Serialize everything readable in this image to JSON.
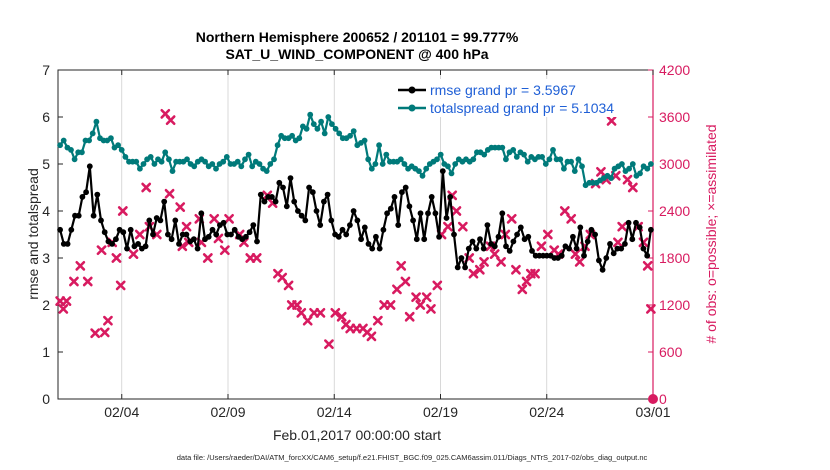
{
  "chart_data": {
    "type": "line",
    "title_line1": "Northern Hemisphere 200652 / 201101 = 99.777%",
    "title_line2": "SAT_U_WIND_COMPONENT @ 400 hPa",
    "xlabel": "Feb.01,2017 00:00:00 start",
    "ylabel_left": "rmse and totalspread",
    "ylabel_right": "# of obs: o=possible; ×=assimilated",
    "footer": "data file: /Users/raeder/DAI/ATM_forcXX/CAM6_setup/f.e21.FHIST_BGC.f09_025.CAM6assim.011/Diags_NTrS_2017-02/obs_diag_output.nc",
    "x_range_days": [
      0.5,
      28.5
    ],
    "x_ticks": [
      {
        "day": 3.5,
        "label": "02/04"
      },
      {
        "day": 8.5,
        "label": "02/09"
      },
      {
        "day": 13.5,
        "label": "02/14"
      },
      {
        "day": 18.5,
        "label": "02/19"
      },
      {
        "day": 23.5,
        "label": "02/24"
      },
      {
        "day": 28.5,
        "label": "03/01"
      }
    ],
    "ylim_left": [
      0,
      7
    ],
    "yticks_left": [
      "0",
      "1",
      "2",
      "3",
      "4",
      "5",
      "6",
      "7"
    ],
    "ylim_right": [
      0,
      4200
    ],
    "yticks_right": [
      "0",
      "600",
      "1200",
      "1800",
      "2400",
      "3000",
      "3600",
      "4200"
    ],
    "colors": {
      "rmse": "#000000",
      "totalspread": "#007a7a",
      "obs": "#d81b60",
      "legend_text": "#1f5fd6",
      "right_axis": "#d81b60"
    },
    "series": [
      {
        "name": "rmse grand pr = 3.5967",
        "color": "#000000",
        "values": [
          3.6,
          3.3,
          3.3,
          3.6,
          3.9,
          3.9,
          4.3,
          4.4,
          4.95,
          3.9,
          4.35,
          3.8,
          3.55,
          3.35,
          3.3,
          3.4,
          3.6,
          3.55,
          3.2,
          3.6,
          3.25,
          3.3,
          3.2,
          3.25,
          3.8,
          3.5,
          3.85,
          3.8,
          4.2,
          3.5,
          3.4,
          3.8,
          3.3,
          3.5,
          3.5,
          3.35,
          3.4,
          3.2,
          3.95,
          3.4,
          3.45,
          3.6,
          3.5,
          3.7,
          3.75,
          3.5,
          3.5,
          3.6,
          3.45,
          3.4,
          3.45,
          3.55,
          3.7,
          3.35,
          4.35,
          4.2,
          4.3,
          4.3,
          4.2,
          4.6,
          4.5,
          4.1,
          4.7,
          4.2,
          4.0,
          3.9,
          3.8,
          4.5,
          4.4,
          4.0,
          3.7,
          4.2,
          4.35,
          3.8,
          3.5,
          3.45,
          3.6,
          3.5,
          3.7,
          4.0,
          3.8,
          3.4,
          3.65,
          3.3,
          3.2,
          3.45,
          3.2,
          3.6,
          3.95,
          4.05,
          4.3,
          3.7,
          4.4,
          4.5,
          4.1,
          3.8,
          3.4,
          3.95,
          3.4,
          3.95,
          4.3,
          3.95,
          3.45,
          4.85,
          3.85,
          4.3,
          3.5,
          2.8,
          3.0,
          2.8,
          3.2,
          3.35,
          3.2,
          3.4,
          3.2,
          3.7,
          3.3,
          3.25,
          3.45,
          3.95,
          3.25,
          3.15,
          3.35,
          3.5,
          3.65,
          3.4,
          3.45,
          3.15,
          3.05,
          3.05,
          3.05,
          3.05,
          3.05,
          3.0,
          3.0,
          3.05,
          3.25,
          3.2,
          3.45,
          3.2,
          3.65,
          3.05,
          3.35,
          3.6,
          3.5,
          2.95,
          2.75,
          3.0,
          3.3,
          3.1,
          3.2,
          3.2,
          3.3,
          3.75,
          3.4,
          3.75,
          3.65,
          3.2,
          3.05,
          3.6
        ]
      },
      {
        "name": "totalspread grand pr = 5.1034",
        "color": "#007a7a",
        "values": [
          5.4,
          5.5,
          5.35,
          5.3,
          5.1,
          5.25,
          5.25,
          5.5,
          5.5,
          5.65,
          5.9,
          5.55,
          5.5,
          5.5,
          5.55,
          5.35,
          5.4,
          5.3,
          5.15,
          5.05,
          5.05,
          5.05,
          4.9,
          5.0,
          5.1,
          5.15,
          5.0,
          5.1,
          5.05,
          5.25,
          5.1,
          4.85,
          5.05,
          5.05,
          5.05,
          5.1,
          5.0,
          4.95,
          5.05,
          5.1,
          5.05,
          4.95,
          5.0,
          4.9,
          5.0,
          5.05,
          5.15,
          5.0,
          5.0,
          5.05,
          4.95,
          5.1,
          5.2,
          4.95,
          5.05,
          5.0,
          4.9,
          4.85,
          5.0,
          5.1,
          5.4,
          5.6,
          5.55,
          5.55,
          5.6,
          5.5,
          5.55,
          5.8,
          5.75,
          6.05,
          5.85,
          5.75,
          5.9,
          5.65,
          6.0,
          5.85,
          5.75,
          5.65,
          5.55,
          5.55,
          5.6,
          5.7,
          5.4,
          5.45,
          5.5,
          5.1,
          4.9,
          5.0,
          5.4,
          5.0,
          5.2,
          5.05,
          5.05,
          5.05,
          5.1,
          5.0,
          4.9,
          4.95,
          4.9,
          4.85,
          4.75,
          4.9,
          5.0,
          5.05,
          5.1,
          5.2,
          5.0,
          4.95,
          4.8,
          5.0,
          5.1,
          5.05,
          5.1,
          5.05,
          5.1,
          5.25,
          5.25,
          5.2,
          5.3,
          5.35,
          5.35,
          5.35,
          5.35,
          5.1,
          5.25,
          5.3,
          5.15,
          5.25,
          5.2,
          5.05,
          5.15,
          5.1,
          5.15,
          5.15,
          5.0,
          5.1,
          5.3,
          5.1,
          5.1,
          4.9,
          5.05,
          5.05,
          4.85,
          5.1,
          4.95,
          4.55,
          4.6,
          4.6,
          4.6,
          4.65,
          4.7,
          4.75,
          4.7,
          4.9,
          4.95,
          5.0,
          4.85,
          4.9,
          5.0,
          4.75,
          4.8,
          4.95,
          4.9,
          5.0
        ]
      }
    ],
    "legend": {
      "position": "top-right",
      "entries": [
        "rmse grand pr = 3.5967",
        "totalspread grand pr = 5.1034"
      ]
    },
    "obs_assimilated": {
      "name": "# of obs assimilated",
      "marker": "x",
      "points": [
        [
          0.6,
          1250
        ],
        [
          0.75,
          1150
        ],
        [
          0.9,
          1250
        ],
        [
          1.25,
          1500
        ],
        [
          1.55,
          1700
        ],
        [
          1.9,
          1500
        ],
        [
          2.25,
          840
        ],
        [
          2.55,
          1900
        ],
        [
          2.7,
          850
        ],
        [
          2.85,
          1000
        ],
        [
          3.05,
          2000
        ],
        [
          3.25,
          1800
        ],
        [
          3.45,
          1450
        ],
        [
          3.55,
          2400
        ],
        [
          4.05,
          1850
        ],
        [
          4.35,
          2100
        ],
        [
          4.65,
          2700
        ],
        [
          4.8,
          2200
        ],
        [
          5.15,
          2100
        ],
        [
          5.55,
          3640
        ],
        [
          5.75,
          2620
        ],
        [
          5.8,
          3560
        ],
        [
          6.25,
          2450
        ],
        [
          6.35,
          1950
        ],
        [
          6.55,
          2200
        ],
        [
          6.65,
          2000
        ],
        [
          7.15,
          2300
        ],
        [
          7.25,
          2000
        ],
        [
          7.55,
          1800
        ],
        [
          7.85,
          2300
        ],
        [
          8.05,
          2050
        ],
        [
          8.35,
          1900
        ],
        [
          8.55,
          2300
        ],
        [
          9.05,
          2100
        ],
        [
          9.25,
          2000
        ],
        [
          9.55,
          1800
        ],
        [
          9.85,
          1800
        ],
        [
          10.35,
          2600
        ],
        [
          10.6,
          2500
        ],
        [
          10.85,
          1600
        ],
        [
          11.05,
          1550
        ],
        [
          11.35,
          1450
        ],
        [
          11.5,
          1200
        ],
        [
          11.75,
          1200
        ],
        [
          11.95,
          1100
        ],
        [
          12.25,
          1000
        ],
        [
          12.55,
          1100
        ],
        [
          12.85,
          1100
        ],
        [
          13.25,
          700
        ],
        [
          13.55,
          1100
        ],
        [
          13.85,
          1050
        ],
        [
          14.05,
          950
        ],
        [
          14.25,
          900
        ],
        [
          14.55,
          900
        ],
        [
          14.85,
          900
        ],
        [
          15.05,
          850
        ],
        [
          15.25,
          800
        ],
        [
          15.55,
          1000
        ],
        [
          15.85,
          1200
        ],
        [
          16.15,
          1200
        ],
        [
          16.45,
          1400
        ],
        [
          16.65,
          1700
        ],
        [
          16.85,
          1500
        ],
        [
          17.05,
          1050
        ],
        [
          17.35,
          1300
        ],
        [
          17.55,
          1200
        ],
        [
          17.85,
          1300
        ],
        [
          18.05,
          1150
        ],
        [
          18.35,
          1450
        ],
        [
          18.55,
          2100
        ],
        [
          18.85,
          2200
        ],
        [
          19.05,
          2600
        ],
        [
          19.25,
          2400
        ],
        [
          19.55,
          2200
        ],
        [
          19.85,
          1800
        ],
        [
          20.05,
          1600
        ],
        [
          20.35,
          1650
        ],
        [
          20.55,
          1750
        ],
        [
          20.85,
          1950
        ],
        [
          21.05,
          1850
        ],
        [
          21.35,
          1750
        ],
        [
          21.55,
          2100
        ],
        [
          21.85,
          2300
        ],
        [
          22.05,
          1650
        ],
        [
          22.35,
          1400
        ],
        [
          22.55,
          1500
        ],
        [
          22.75,
          1600
        ],
        [
          22.95,
          1600
        ],
        [
          23.25,
          1950
        ],
        [
          23.55,
          2100
        ],
        [
          23.85,
          1900
        ],
        [
          24.05,
          1850
        ],
        [
          24.35,
          2400
        ],
        [
          24.65,
          2300
        ],
        [
          24.85,
          1850
        ],
        [
          25.05,
          1750
        ],
        [
          25.3,
          1950
        ],
        [
          25.55,
          2100
        ],
        [
          25.8,
          2750
        ],
        [
          26.05,
          2900
        ],
        [
          26.3,
          2800
        ],
        [
          26.55,
          3550
        ],
        [
          26.75,
          2850
        ],
        [
          26.85,
          2000
        ],
        [
          27.05,
          2200
        ],
        [
          27.3,
          2800
        ],
        [
          27.55,
          2700
        ],
        [
          27.8,
          2200
        ],
        [
          28.05,
          2000
        ],
        [
          28.25,
          1700
        ],
        [
          28.4,
          1150
        ]
      ]
    }
  }
}
